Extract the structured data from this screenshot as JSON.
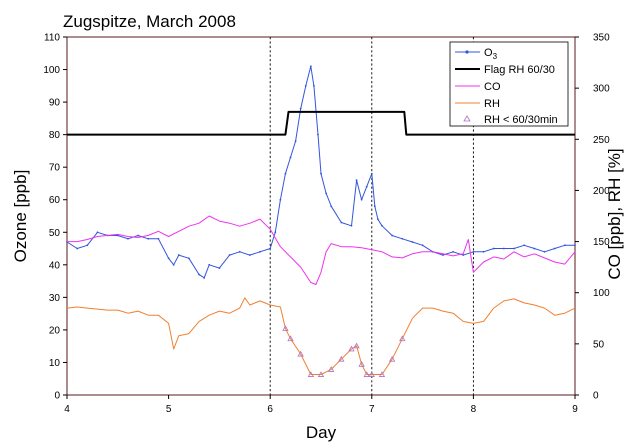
{
  "chart_data": {
    "type": "line",
    "title": "Zugspitze, March 2008",
    "xlabel": "Day",
    "ylabel_left": "Ozone [ppb]",
    "ylabel_right": "CO [ppb], RH [%]",
    "xlim": [
      4,
      9
    ],
    "ylim_left": [
      0,
      110
    ],
    "ylim_right": [
      0,
      350
    ],
    "x_ticks": [
      4,
      5,
      6,
      7,
      8,
      9
    ],
    "y_ticks_left": [
      0,
      10,
      20,
      30,
      40,
      50,
      60,
      70,
      80,
      90,
      100,
      110
    ],
    "y_ticks_right": [
      0,
      50,
      100,
      150,
      200,
      250,
      300,
      350
    ],
    "grid": false,
    "legend_position": "top-right",
    "vertical_lines_x": [
      6,
      7,
      8
    ],
    "series": [
      {
        "name": "O3",
        "axis": "left",
        "color": "#3355dd",
        "x": [
          4.0,
          4.1,
          4.2,
          4.3,
          4.4,
          4.5,
          4.6,
          4.7,
          4.8,
          4.9,
          5.0,
          5.05,
          5.1,
          5.2,
          5.3,
          5.35,
          5.4,
          5.5,
          5.6,
          5.7,
          5.8,
          5.9,
          6.0,
          6.05,
          6.1,
          6.15,
          6.2,
          6.25,
          6.3,
          6.35,
          6.4,
          6.43,
          6.47,
          6.5,
          6.55,
          6.6,
          6.7,
          6.8,
          6.85,
          6.9,
          6.95,
          7.0,
          7.03,
          7.06,
          7.1,
          7.2,
          7.3,
          7.4,
          7.5,
          7.6,
          7.7,
          7.8,
          7.9,
          8.0,
          8.1,
          8.2,
          8.3,
          8.4,
          8.5,
          8.6,
          8.7,
          8.8,
          8.9,
          9.0
        ],
        "y": [
          47,
          45,
          46,
          50,
          49,
          49,
          48,
          49,
          48,
          48,
          42,
          40,
          43,
          42,
          37,
          36,
          40,
          39,
          43,
          44,
          43,
          44,
          45,
          50,
          60,
          68,
          73,
          78,
          88,
          95,
          101,
          95,
          80,
          68,
          62,
          58,
          53,
          52,
          66,
          60,
          64,
          68,
          58,
          54,
          52,
          49,
          48,
          47,
          46,
          44,
          43,
          44,
          43,
          44,
          44,
          45,
          45,
          45,
          46,
          45,
          44,
          45,
          46,
          46
        ]
      },
      {
        "name": "Flag RH 60/30",
        "axis": "left",
        "color": "#000000",
        "x": [
          4.0,
          6.15,
          6.18,
          7.32,
          7.34,
          9.0
        ],
        "y": [
          80,
          80,
          87,
          87,
          80,
          80
        ]
      },
      {
        "name": "CO",
        "axis": "right",
        "color": "#ee33ee",
        "x": [
          4.0,
          4.1,
          4.2,
          4.3,
          4.4,
          4.5,
          4.6,
          4.7,
          4.8,
          4.9,
          5.0,
          5.1,
          5.2,
          5.3,
          5.4,
          5.5,
          5.6,
          5.7,
          5.8,
          5.9,
          6.0,
          6.1,
          6.2,
          6.3,
          6.4,
          6.45,
          6.5,
          6.55,
          6.6,
          6.7,
          6.8,
          6.9,
          7.0,
          7.1,
          7.2,
          7.3,
          7.4,
          7.5,
          7.6,
          7.7,
          7.8,
          7.9,
          7.95,
          8.0,
          8.05,
          8.1,
          8.2,
          8.3,
          8.4,
          8.5,
          8.6,
          8.7,
          8.8,
          8.9,
          9.0
        ],
        "y": [
          150,
          150,
          152,
          155,
          156,
          157,
          155,
          154,
          156,
          160,
          155,
          160,
          165,
          168,
          175,
          170,
          168,
          165,
          168,
          172,
          162,
          145,
          135,
          125,
          110,
          108,
          120,
          140,
          148,
          145,
          145,
          144,
          142,
          140,
          135,
          134,
          138,
          140,
          140,
          138,
          136,
          138,
          152,
          120,
          125,
          130,
          135,
          133,
          140,
          135,
          138,
          134,
          130,
          128,
          140
        ]
      },
      {
        "name": "RH",
        "axis": "right",
        "color": "#f08030",
        "x": [
          4.0,
          4.1,
          4.2,
          4.3,
          4.4,
          4.5,
          4.6,
          4.7,
          4.8,
          4.9,
          5.0,
          5.05,
          5.1,
          5.2,
          5.3,
          5.4,
          5.5,
          5.6,
          5.7,
          5.75,
          5.8,
          5.9,
          6.0,
          6.1,
          6.15,
          6.2,
          6.3,
          6.4,
          6.5,
          6.6,
          6.7,
          6.8,
          6.85,
          6.9,
          6.95,
          7.0,
          7.1,
          7.2,
          7.3,
          7.4,
          7.5,
          7.6,
          7.7,
          7.8,
          7.9,
          8.0,
          8.1,
          8.2,
          8.3,
          8.4,
          8.5,
          8.6,
          8.7,
          8.8,
          8.9,
          9.0
        ],
        "y": [
          85,
          86,
          85,
          84,
          83,
          83,
          80,
          82,
          78,
          78,
          70,
          45,
          58,
          60,
          72,
          78,
          82,
          80,
          85,
          95,
          88,
          92,
          88,
          86,
          65,
          55,
          40,
          20,
          20,
          25,
          35,
          45,
          48,
          30,
          20,
          20,
          20,
          35,
          55,
          75,
          85,
          85,
          82,
          80,
          72,
          70,
          72,
          85,
          92,
          94,
          90,
          88,
          85,
          78,
          80,
          85
        ]
      },
      {
        "name": "RH < 60/30min",
        "axis": "right",
        "color": "#b070c0",
        "x": [
          6.15,
          6.2,
          6.3,
          6.4,
          6.5,
          6.6,
          6.7,
          6.8,
          6.85,
          6.9,
          6.95,
          7.0,
          7.1,
          7.2,
          7.3
        ],
        "y": [
          65,
          55,
          40,
          20,
          20,
          25,
          35,
          45,
          48,
          30,
          20,
          20,
          20,
          35,
          55
        ]
      }
    ]
  },
  "legend": {
    "o3_base": "O",
    "o3_sub": "3",
    "items": [
      "Flag RH 60/30",
      "CO",
      "RH",
      "RH < 60/30min"
    ]
  }
}
